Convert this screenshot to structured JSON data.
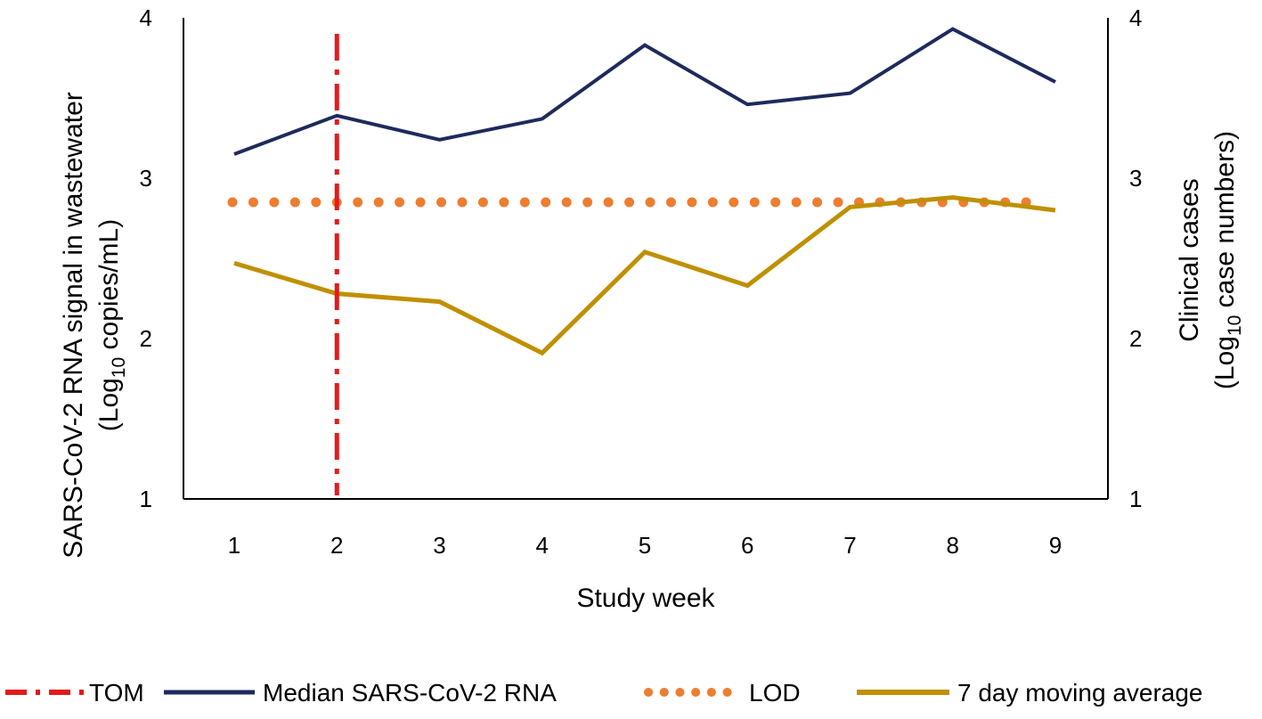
{
  "chart_data": {
    "type": "line",
    "title": "",
    "xlabel": "Study week",
    "ylabel_left": {
      "line1": "SARS-CoV-2 RNA signal in wastewater",
      "line2_prefix": "(Log",
      "line2_sub": "10",
      "line2_suffix": " copies/mL)"
    },
    "ylabel_right": {
      "line1": "Clinical cases",
      "line2_prefix": "(Log",
      "line2_sub": "10",
      "line2_suffix": " case numbers)"
    },
    "categories": [
      "1",
      "2",
      "3",
      "4",
      "5",
      "6",
      "7",
      "8",
      "9"
    ],
    "x": [
      1,
      2,
      3,
      4,
      5,
      6,
      7,
      8,
      9
    ],
    "ylim_left": [
      1,
      4
    ],
    "ylim_right": [
      1,
      4
    ],
    "yticks_left": [
      "1",
      "2",
      "3",
      "4"
    ],
    "yticks_right": [
      "1",
      "2",
      "3",
      "4"
    ],
    "grid": false,
    "legend_position": "bottom",
    "series": [
      {
        "name": "Median SARS-CoV-2 RNA",
        "axis": "left",
        "style": "solid",
        "color": "#1f2a5c",
        "values": [
          3.15,
          3.39,
          3.24,
          3.37,
          3.83,
          3.46,
          3.53,
          3.93,
          3.6
        ]
      },
      {
        "name": "LOD",
        "axis": "left",
        "style": "dotted",
        "color": "#ed7d31",
        "values": [
          2.85,
          2.85,
          2.85,
          2.85,
          2.85,
          2.85,
          2.85,
          2.85,
          2.85
        ]
      },
      {
        "name": "7 day moving average",
        "axis": "right",
        "style": "solid",
        "color": "#bf9000",
        "values": [
          2.47,
          2.28,
          2.23,
          1.91,
          2.54,
          2.33,
          2.82,
          2.88,
          2.8
        ]
      }
    ],
    "reference_lines": [
      {
        "name": "TOM",
        "type": "vertical",
        "x": 2,
        "y_range": [
          1,
          3.9
        ],
        "style": "dash-dot",
        "color": "#e31a1c"
      }
    ],
    "legend": [
      {
        "name": "TOM",
        "style": "dash-dot",
        "color": "#e31a1c"
      },
      {
        "name": "Median SARS-CoV-2 RNA",
        "style": "solid",
        "color": "#1f2a5c"
      },
      {
        "name": "LOD",
        "style": "dotted",
        "color": "#ed7d31"
      },
      {
        "name": "7 day moving average",
        "style": "solid",
        "color": "#bf9000"
      }
    ]
  }
}
